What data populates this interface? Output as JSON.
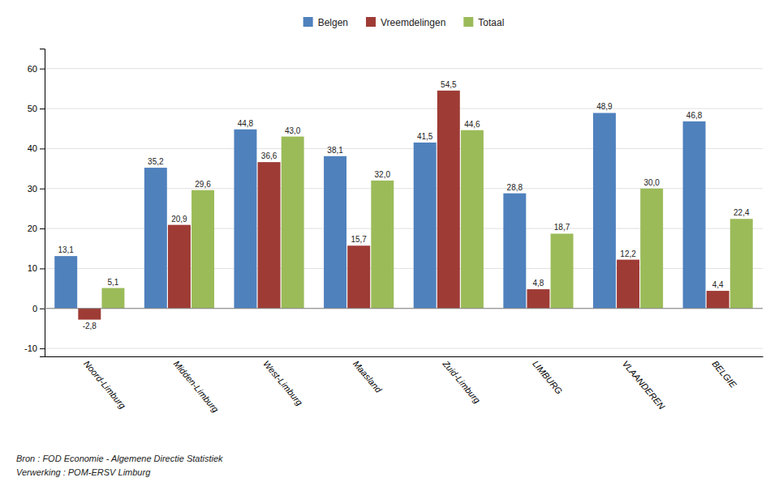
{
  "chart_data": {
    "type": "bar",
    "categories": [
      "Noord-Limburg",
      "Midden-Limburg",
      "West-Limburg",
      "Maasland",
      "Zuid-Limburg",
      "LIMBURG",
      "VLAANDEREN",
      "BELGIE"
    ],
    "series": [
      {
        "name": "Belgen",
        "color": "#4f81bd",
        "values": [
          13.1,
          35.2,
          44.8,
          38.1,
          41.5,
          28.8,
          48.9,
          46.8
        ],
        "value_labels": [
          "13,1",
          "35,2",
          "44,8",
          "38,1",
          "41,5",
          "28,8",
          "48,9",
          "46,8"
        ]
      },
      {
        "name": "Vreemdelingen",
        "color": "#9e3b35",
        "values": [
          -2.8,
          20.9,
          36.6,
          15.7,
          54.5,
          4.8,
          12.2,
          4.4
        ],
        "value_labels": [
          "-2,8",
          "20,9",
          "36,6",
          "15,7",
          "54,5",
          "4,8",
          "12,2",
          "4,4"
        ]
      },
      {
        "name": "Totaal",
        "color": "#9bbb59",
        "values": [
          5.1,
          29.6,
          43.0,
          32.0,
          44.6,
          18.7,
          30.0,
          22.4
        ],
        "value_labels": [
          "5,1",
          "29,6",
          "43,0",
          "32,0",
          "44,6",
          "18,7",
          "30,0",
          "22,4"
        ]
      }
    ],
    "ylim": [
      -12,
      65
    ],
    "yticks": [
      -10,
      0,
      10,
      20,
      30,
      40,
      50,
      60
    ],
    "grid": true,
    "data_labels": true,
    "legend": "top",
    "annotations": [
      "Bron : FOD Economie - Algemene Directie Statistiek",
      "Verwerking : POM-ERSV Limburg"
    ]
  }
}
